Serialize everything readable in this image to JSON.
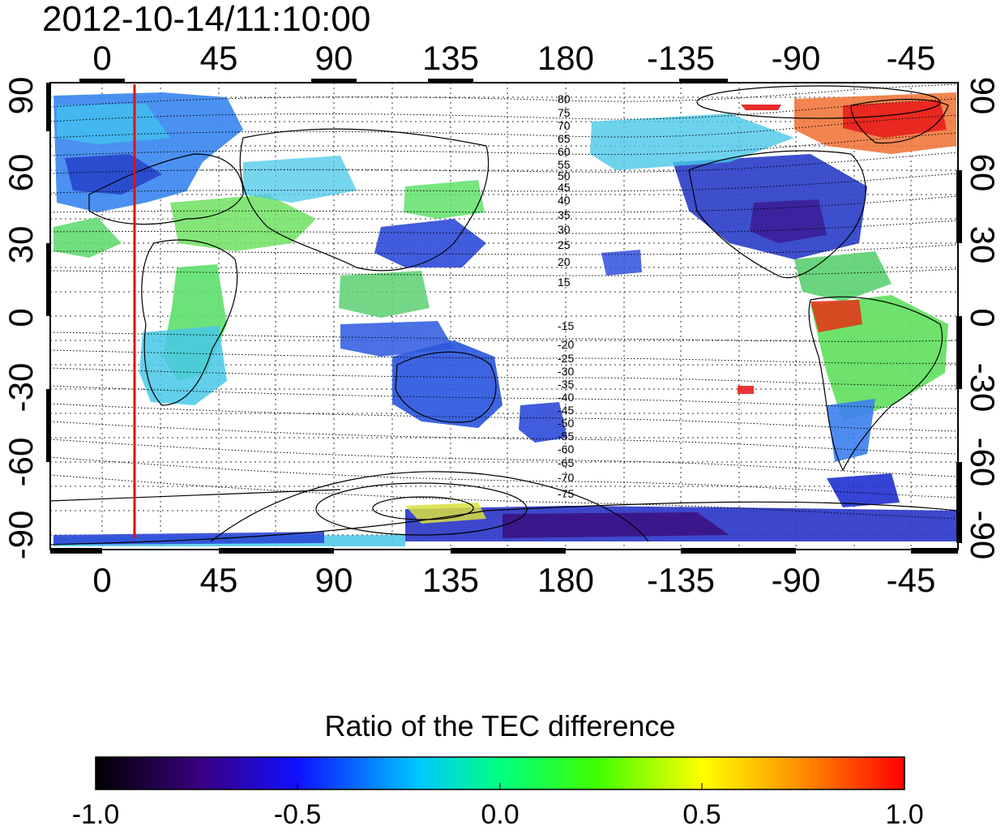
{
  "timestamp": "2012-10-14/11:10:00",
  "lon_labels": [
    "0",
    "45",
    "90",
    "135",
    "180",
    "-135",
    "-90",
    "-45"
  ],
  "lat_labels": [
    "90",
    "60",
    "30",
    "0",
    "-30",
    "-60",
    "-90"
  ],
  "contour_labels": {
    "north": [
      "80",
      "75",
      "70",
      "65",
      "60",
      "55",
      "50",
      "45",
      "40",
      "35",
      "30",
      "25",
      "20",
      "15"
    ],
    "south": [
      "-15",
      "-20",
      "-25",
      "-30",
      "-35",
      "-40",
      "-45",
      "-50",
      "-55",
      "-60",
      "-65",
      "-70",
      "-75"
    ]
  },
  "colorbar": {
    "title": "Ratio of the TEC difference",
    "tick_labels": [
      "-1.0",
      "-0.5",
      "0.0",
      "0.5",
      "1.0"
    ],
    "colors": [
      "#000000",
      "#3a0080",
      "#1010ff",
      "#00c8ff",
      "#00ff80",
      "#40ff00",
      "#ffff00",
      "#ff9000",
      "#ff0000"
    ]
  },
  "marker_line": {
    "color": "#dd1111",
    "longitude_label": "15"
  },
  "data_colors": {
    "deep_blue": "#2030d0",
    "blue": "#3070f0",
    "cyan": "#40c8f0",
    "green": "#50e070",
    "lime": "#90f040",
    "yellow": "#f0e040",
    "red": "#f02020",
    "purple": "#4a1090"
  }
}
